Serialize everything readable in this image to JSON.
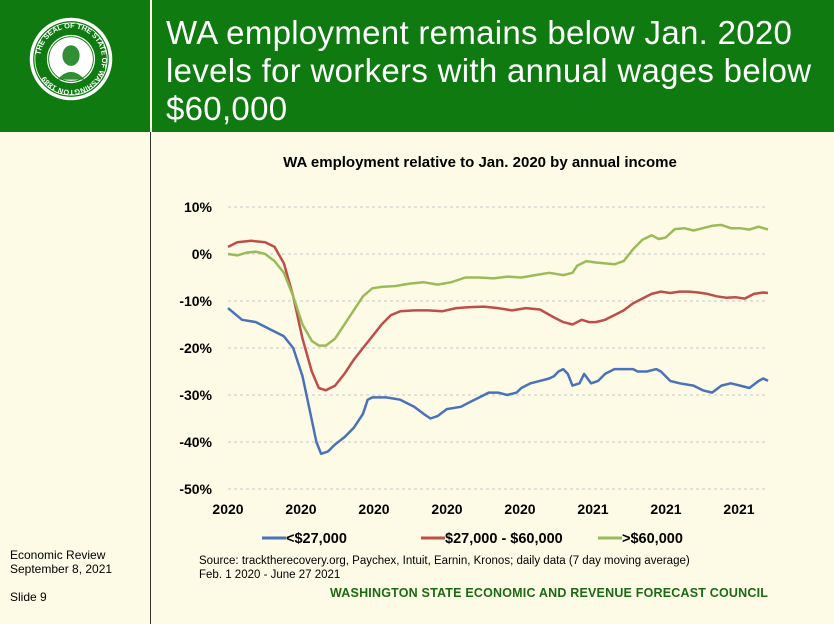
{
  "header": {
    "title": "WA employment remains below Jan. 2020 levels for workers with annual wages below $60,000",
    "seal_text": "THE SEAL OF THE STATE OF WASHINGTON 1889"
  },
  "left_notes": {
    "line1": "Economic Review",
    "line2": "September 8, 2021",
    "slide": "Slide 9"
  },
  "footer": {
    "source_line1": "Source: tracktherecovery.org, Paychex, Intuit, Earnin, Kronos; daily data (7 day moving average)",
    "source_line2": "Feb. 1 2020 - June 27 2021",
    "council": "WASHINGTON STATE ECONOMIC AND REVENUE FORECAST COUNCIL"
  },
  "colors": {
    "header_green": "#0e7a10",
    "blue": "#4a72b8",
    "red": "#bf4d4a",
    "green": "#9bbb59"
  },
  "chart_data": {
    "type": "line",
    "title": "WA employment relative to Jan. 2020 by annual income",
    "x_tick_labels": [
      "2020",
      "2020",
      "2020",
      "2020",
      "2020",
      "2021",
      "2021",
      "2021"
    ],
    "y_tick_labels": [
      "10%",
      "0%",
      "-10%",
      "-20%",
      "-30%",
      "-40%",
      "-50%"
    ],
    "ylim": [
      -50,
      10
    ],
    "y_unit": "%",
    "x_range": [
      "2020-02-01",
      "2021-06-27"
    ],
    "grid": true,
    "legend_position": "bottom",
    "series": [
      {
        "name": "<$27,000",
        "color": "#4a72b8",
        "points": [
          [
            0,
            -11.5
          ],
          [
            3,
            -14
          ],
          [
            6,
            -14.5
          ],
          [
            9,
            -16
          ],
          [
            12,
            -17.5
          ],
          [
            14,
            -20
          ],
          [
            16,
            -26
          ],
          [
            17.5,
            -33
          ],
          [
            19,
            -40
          ],
          [
            20,
            -42.5
          ],
          [
            21.5,
            -42
          ],
          [
            23,
            -40.5
          ],
          [
            25,
            -39
          ],
          [
            27,
            -37
          ],
          [
            29,
            -34
          ],
          [
            30,
            -31
          ],
          [
            31,
            -30.5
          ],
          [
            34,
            -30.5
          ],
          [
            37,
            -31
          ],
          [
            40,
            -32.5
          ],
          [
            42,
            -34
          ],
          [
            43.5,
            -35
          ],
          [
            45,
            -34.5
          ],
          [
            47,
            -33
          ],
          [
            50,
            -32.5
          ],
          [
            52,
            -31.5
          ],
          [
            54,
            -30.5
          ],
          [
            56,
            -29.5
          ],
          [
            58,
            -29.5
          ],
          [
            60,
            -30
          ],
          [
            62,
            -29.5
          ],
          [
            63,
            -28.5
          ],
          [
            65,
            -27.5
          ],
          [
            67,
            -27
          ],
          [
            69,
            -26.5
          ],
          [
            70,
            -26
          ],
          [
            71,
            -25
          ],
          [
            72,
            -24.5
          ],
          [
            73,
            -25.5
          ],
          [
            74,
            -28
          ],
          [
            75.5,
            -27.5
          ],
          [
            76.5,
            -25.5
          ],
          [
            78,
            -27.5
          ],
          [
            79.5,
            -27
          ],
          [
            81,
            -25.5
          ],
          [
            83,
            -24.5
          ],
          [
            85,
            -24.5
          ],
          [
            87,
            -24.5
          ],
          [
            88,
            -25
          ],
          [
            90,
            -25
          ],
          [
            92,
            -24.5
          ],
          [
            93,
            -25
          ],
          [
            95,
            -27
          ],
          [
            97,
            -27.5
          ],
          [
            100,
            -28
          ],
          [
            102,
            -29
          ],
          [
            104,
            -29.5
          ],
          [
            106,
            -28
          ],
          [
            108,
            -27.5
          ],
          [
            110,
            -28
          ],
          [
            112,
            -28.5
          ],
          [
            114,
            -27
          ],
          [
            115,
            -26.5
          ],
          [
            116,
            -27
          ]
        ]
      },
      {
        "name": "$27,000 - $60,000",
        "color": "#bf4d4a",
        "points": [
          [
            0,
            1.5
          ],
          [
            2,
            2.5
          ],
          [
            5,
            2.8
          ],
          [
            8,
            2.5
          ],
          [
            10,
            1.5
          ],
          [
            12,
            -2
          ],
          [
            14,
            -9
          ],
          [
            16,
            -18
          ],
          [
            18,
            -25
          ],
          [
            19.5,
            -28.5
          ],
          [
            21,
            -29
          ],
          [
            23,
            -28
          ],
          [
            25,
            -25.5
          ],
          [
            27,
            -22.5
          ],
          [
            29,
            -20
          ],
          [
            31,
            -17.5
          ],
          [
            33,
            -15
          ],
          [
            35,
            -13
          ],
          [
            37,
            -12.2
          ],
          [
            40,
            -12
          ],
          [
            43,
            -12
          ],
          [
            46,
            -12.2
          ],
          [
            49,
            -11.5
          ],
          [
            52,
            -11.3
          ],
          [
            55,
            -11.2
          ],
          [
            58,
            -11.5
          ],
          [
            61,
            -12
          ],
          [
            64,
            -11.5
          ],
          [
            67,
            -11.8
          ],
          [
            70,
            -13.5
          ],
          [
            72,
            -14.5
          ],
          [
            74,
            -15
          ],
          [
            76,
            -14
          ],
          [
            77.5,
            -14.5
          ],
          [
            79,
            -14.5
          ],
          [
            81,
            -14
          ],
          [
            83,
            -13
          ],
          [
            85,
            -12
          ],
          [
            87,
            -10.5
          ],
          [
            89,
            -9.5
          ],
          [
            91,
            -8.5
          ],
          [
            93,
            -8
          ],
          [
            95,
            -8.3
          ],
          [
            97,
            -8
          ],
          [
            99,
            -8
          ],
          [
            101,
            -8.2
          ],
          [
            103,
            -8.5
          ],
          [
            105,
            -9
          ],
          [
            107,
            -9.3
          ],
          [
            109,
            -9.2
          ],
          [
            111,
            -9.5
          ],
          [
            113,
            -8.5
          ],
          [
            115,
            -8.2
          ],
          [
            116,
            -8.3
          ]
        ]
      },
      {
        "name": ">$60,000",
        "color": "#9bbb59",
        "points": [
          [
            0,
            0
          ],
          [
            2,
            -0.3
          ],
          [
            4,
            0.3
          ],
          [
            6,
            0.5
          ],
          [
            8,
            0
          ],
          [
            10,
            -1.5
          ],
          [
            12,
            -4
          ],
          [
            14,
            -9
          ],
          [
            16,
            -15
          ],
          [
            18,
            -18.5
          ],
          [
            19.5,
            -19.5
          ],
          [
            21,
            -19.5
          ],
          [
            23,
            -18
          ],
          [
            25,
            -15
          ],
          [
            27,
            -12
          ],
          [
            29,
            -9
          ],
          [
            31,
            -7.3
          ],
          [
            33,
            -7
          ],
          [
            36,
            -6.8
          ],
          [
            39,
            -6.3
          ],
          [
            42,
            -6
          ],
          [
            45,
            -6.5
          ],
          [
            48,
            -6
          ],
          [
            51,
            -5
          ],
          [
            54,
            -5
          ],
          [
            57,
            -5.2
          ],
          [
            60,
            -4.8
          ],
          [
            63,
            -5
          ],
          [
            66,
            -4.5
          ],
          [
            69,
            -4
          ],
          [
            72,
            -4.5
          ],
          [
            74,
            -4
          ],
          [
            75,
            -2.5
          ],
          [
            77,
            -1.5
          ],
          [
            79,
            -1.8
          ],
          [
            81,
            -2
          ],
          [
            83,
            -2.2
          ],
          [
            85,
            -1.5
          ],
          [
            87,
            1
          ],
          [
            89,
            3
          ],
          [
            91,
            4
          ],
          [
            92.5,
            3.2
          ],
          [
            94,
            3.5
          ],
          [
            96,
            5.3
          ],
          [
            98,
            5.5
          ],
          [
            100,
            5
          ],
          [
            102,
            5.5
          ],
          [
            104,
            6
          ],
          [
            106,
            6.2
          ],
          [
            108,
            5.5
          ],
          [
            110,
            5.5
          ],
          [
            112,
            5.2
          ],
          [
            114,
            5.8
          ],
          [
            116,
            5.2
          ]
        ]
      }
    ]
  }
}
